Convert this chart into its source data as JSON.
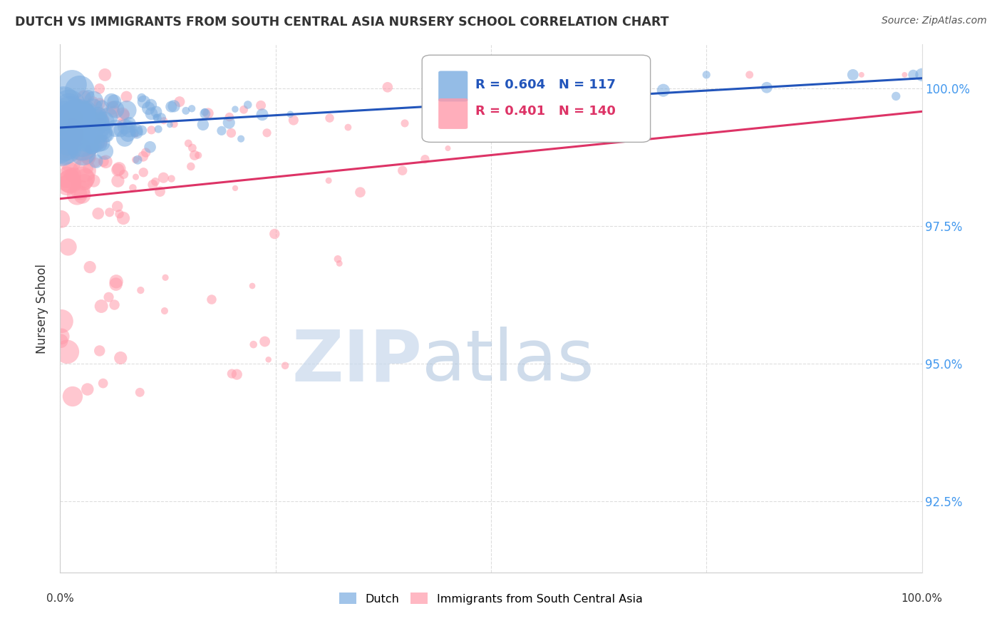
{
  "title": "DUTCH VS IMMIGRANTS FROM SOUTH CENTRAL ASIA NURSERY SCHOOL CORRELATION CHART",
  "source": "Source: ZipAtlas.com",
  "ylabel": "Nursery School",
  "xlim": [
    0.0,
    100.0
  ],
  "ylim": [
    91.2,
    100.8
  ],
  "ytick_values": [
    92.5,
    95.0,
    97.5,
    100.0
  ],
  "xtick_values": [
    0.0,
    25.0,
    50.0,
    75.0,
    100.0
  ],
  "legend_label1": "Dutch",
  "legend_label2": "Immigrants from South Central Asia",
  "R_blue": 0.604,
  "N_blue": 117,
  "R_pink": 0.401,
  "N_pink": 140,
  "blue_color": "#7AACE0",
  "pink_color": "#FF9AAA",
  "blue_line_color": "#2255BB",
  "pink_line_color": "#DD3366",
  "background_color": "#FFFFFF",
  "title_color": "#333333",
  "right_axis_color": "#4499EE",
  "grid_color": "#DDDDDD"
}
